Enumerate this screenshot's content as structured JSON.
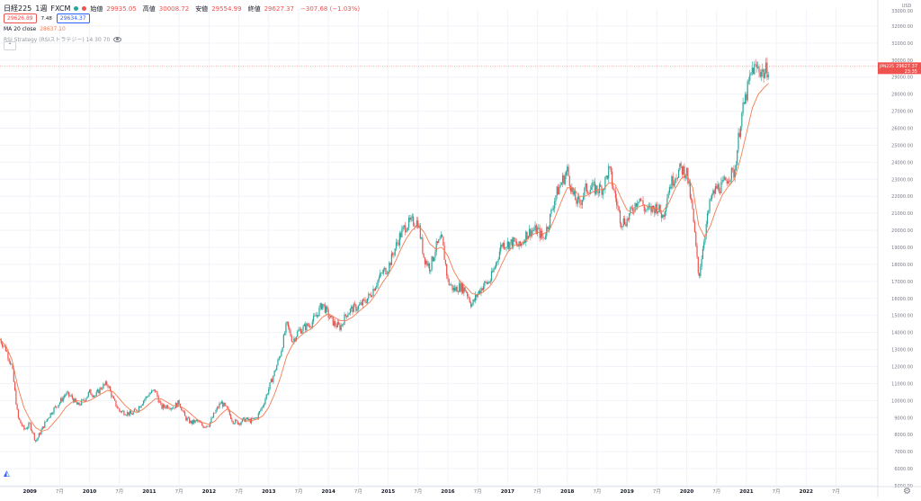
{
  "header": {
    "symbol": "日経225",
    "interval": "1週",
    "source": "FXCM",
    "status_dot_color": "#26a69a",
    "market_dot_color": "#ef5350",
    "ohlc": [
      {
        "label": "始値",
        "value": "29935.05"
      },
      {
        "label": "高値",
        "value": "30008.72"
      },
      {
        "label": "安値",
        "value": "29554.99"
      },
      {
        "label": "終値",
        "value": "29627.37"
      }
    ],
    "change": "−307.68 (−1.03%)",
    "sell_price": "29626.89",
    "spread": "7.48",
    "buy_price": "29634.37",
    "ma_label": "MA 20 close",
    "ma_value": "28637.10",
    "strategy_label": "RSI Strategy (RSIストラテジー) 14 30 70"
  },
  "colors": {
    "up": "#26a69a",
    "down": "#ef5350",
    "ma": "#f57c4f",
    "grid": "#f0f3fa",
    "axis_text": "#787b86",
    "price_line": "#ef5350"
  },
  "price_axis": {
    "currency": "USD",
    "top_label": "33000.00",
    "last_price_tag": "29627.37",
    "last_time_tag": "23:35",
    "last_symbol_tag": "JPN225"
  },
  "icons": {
    "logo": "tradingview-logo-icon",
    "settings": "gear-icon",
    "collapse": "chevron-up-icon"
  },
  "chart_data": {
    "type": "candlestick",
    "title": "日経225 1週 FXCM",
    "ylabel": "USD",
    "ylim": [
      5000,
      33000
    ],
    "yticks": [
      5000,
      6000,
      7000,
      8000,
      9000,
      10000,
      11000,
      12000,
      13000,
      14000,
      15000,
      16000,
      17000,
      18000,
      19000,
      20000,
      21000,
      22000,
      23000,
      24000,
      25000,
      26000,
      27000,
      28000,
      29000,
      30000,
      31000,
      32000
    ],
    "ytick_labels": [
      "5000.00",
      "6000.00",
      "7000.00",
      "8000.00",
      "9000.00",
      "10000.00",
      "11000.00",
      "12000.00",
      "13000.00",
      "14000.00",
      "15000.00",
      "16000.00",
      "17000.00",
      "18000.00",
      "19000.00",
      "20000.00",
      "21000.00",
      "22000.00",
      "23000.00",
      "24000.00",
      "25000.00",
      "26000.00",
      "27000.00",
      "28000.00",
      "29000.00",
      "30000.00",
      "31000.00",
      "32000.00"
    ],
    "xlim": [
      2008.5,
      2023.2
    ],
    "xticks": [
      {
        "x": 2009.0,
        "label": "2009",
        "bold": true
      },
      {
        "x": 2009.5,
        "label": "7月",
        "bold": false
      },
      {
        "x": 2010.0,
        "label": "2010",
        "bold": true
      },
      {
        "x": 2010.5,
        "label": "7月",
        "bold": false
      },
      {
        "x": 2011.0,
        "label": "2011",
        "bold": true
      },
      {
        "x": 2011.5,
        "label": "7月",
        "bold": false
      },
      {
        "x": 2012.0,
        "label": "2012",
        "bold": true
      },
      {
        "x": 2012.5,
        "label": "7月",
        "bold": false
      },
      {
        "x": 2013.0,
        "label": "2013",
        "bold": true
      },
      {
        "x": 2013.5,
        "label": "7月",
        "bold": false
      },
      {
        "x": 2014.0,
        "label": "2014",
        "bold": true
      },
      {
        "x": 2014.5,
        "label": "7月",
        "bold": false
      },
      {
        "x": 2015.0,
        "label": "2015",
        "bold": true
      },
      {
        "x": 2015.5,
        "label": "7月",
        "bold": false
      },
      {
        "x": 2016.0,
        "label": "2016",
        "bold": true
      },
      {
        "x": 2016.5,
        "label": "7月",
        "bold": false
      },
      {
        "x": 2017.0,
        "label": "2017",
        "bold": true
      },
      {
        "x": 2017.5,
        "label": "7月",
        "bold": false
      },
      {
        "x": 2018.0,
        "label": "2018",
        "bold": true
      },
      {
        "x": 2018.5,
        "label": "7月",
        "bold": false
      },
      {
        "x": 2019.0,
        "label": "2019",
        "bold": true
      },
      {
        "x": 2019.5,
        "label": "7月",
        "bold": false
      },
      {
        "x": 2020.0,
        "label": "2020",
        "bold": true
      },
      {
        "x": 2020.5,
        "label": "7月",
        "bold": false
      },
      {
        "x": 2021.0,
        "label": "2021",
        "bold": true
      },
      {
        "x": 2021.5,
        "label": "7月",
        "bold": false
      },
      {
        "x": 2022.0,
        "label": "2022",
        "bold": true
      },
      {
        "x": 2022.5,
        "label": "7月",
        "bold": false
      }
    ],
    "close_path": [
      [
        2008.5,
        13600
      ],
      [
        2008.6,
        13000
      ],
      [
        2008.7,
        12000
      ],
      [
        2008.8,
        9000
      ],
      [
        2008.9,
        8300
      ],
      [
        2009.0,
        8600
      ],
      [
        2009.1,
        7600
      ],
      [
        2009.2,
        8300
      ],
      [
        2009.3,
        9000
      ],
      [
        2009.4,
        9500
      ],
      [
        2009.5,
        9900
      ],
      [
        2009.6,
        10400
      ],
      [
        2009.7,
        10200
      ],
      [
        2009.8,
        9700
      ],
      [
        2009.9,
        10000
      ],
      [
        2010.0,
        10500
      ],
      [
        2010.1,
        10300
      ],
      [
        2010.2,
        10800
      ],
      [
        2010.3,
        11000
      ],
      [
        2010.4,
        10000
      ],
      [
        2010.5,
        9400
      ],
      [
        2010.6,
        9300
      ],
      [
        2010.7,
        9200
      ],
      [
        2010.8,
        9500
      ],
      [
        2010.9,
        10000
      ],
      [
        2011.0,
        10400
      ],
      [
        2011.1,
        10600
      ],
      [
        2011.2,
        9600
      ],
      [
        2011.3,
        9700
      ],
      [
        2011.4,
        9600
      ],
      [
        2011.5,
        9900
      ],
      [
        2011.6,
        9000
      ],
      [
        2011.7,
        8700
      ],
      [
        2011.8,
        8800
      ],
      [
        2011.9,
        8500
      ],
      [
        2012.0,
        8600
      ],
      [
        2012.1,
        9300
      ],
      [
        2012.2,
        9900
      ],
      [
        2012.3,
        9500
      ],
      [
        2012.4,
        8800
      ],
      [
        2012.5,
        8700
      ],
      [
        2012.6,
        8900
      ],
      [
        2012.7,
        8800
      ],
      [
        2012.8,
        9000
      ],
      [
        2012.9,
        9700
      ],
      [
        2013.0,
        10700
      ],
      [
        2013.1,
        11700
      ],
      [
        2013.2,
        12800
      ],
      [
        2013.3,
        14500
      ],
      [
        2013.4,
        13500
      ],
      [
        2013.5,
        14100
      ],
      [
        2013.6,
        14300
      ],
      [
        2013.7,
        14500
      ],
      [
        2013.8,
        15000
      ],
      [
        2013.9,
        15700
      ],
      [
        2014.0,
        15000
      ],
      [
        2014.1,
        14500
      ],
      [
        2014.2,
        14300
      ],
      [
        2014.3,
        15100
      ],
      [
        2014.4,
        15400
      ],
      [
        2014.5,
        15500
      ],
      [
        2014.6,
        15800
      ],
      [
        2014.7,
        16200
      ],
      [
        2014.8,
        16900
      ],
      [
        2014.9,
        17500
      ],
      [
        2015.0,
        17800
      ],
      [
        2015.1,
        18800
      ],
      [
        2015.2,
        19700
      ],
      [
        2015.3,
        20300
      ],
      [
        2015.4,
        20500
      ],
      [
        2015.5,
        20500
      ],
      [
        2015.6,
        18400
      ],
      [
        2015.7,
        17800
      ],
      [
        2015.8,
        19000
      ],
      [
        2015.9,
        19500
      ],
      [
        2016.0,
        17000
      ],
      [
        2016.1,
        16500
      ],
      [
        2016.2,
        16700
      ],
      [
        2016.3,
        16500
      ],
      [
        2016.4,
        15600
      ],
      [
        2016.5,
        16300
      ],
      [
        2016.6,
        16800
      ],
      [
        2016.7,
        17000
      ],
      [
        2016.8,
        18000
      ],
      [
        2016.9,
        19200
      ],
      [
        2017.0,
        19200
      ],
      [
        2017.1,
        19300
      ],
      [
        2017.2,
        19000
      ],
      [
        2017.3,
        19700
      ],
      [
        2017.4,
        20000
      ],
      [
        2017.5,
        20000
      ],
      [
        2017.6,
        19500
      ],
      [
        2017.7,
        20600
      ],
      [
        2017.8,
        22000
      ],
      [
        2017.9,
        22800
      ],
      [
        2018.0,
        23500
      ],
      [
        2018.1,
        22000
      ],
      [
        2018.2,
        21500
      ],
      [
        2018.3,
        22400
      ],
      [
        2018.4,
        22500
      ],
      [
        2018.5,
        22400
      ],
      [
        2018.6,
        22500
      ],
      [
        2018.7,
        23600
      ],
      [
        2018.8,
        22000
      ],
      [
        2018.9,
        20500
      ],
      [
        2019.0,
        20600
      ],
      [
        2019.1,
        21300
      ],
      [
        2019.2,
        22000
      ],
      [
        2019.3,
        21200
      ],
      [
        2019.4,
        21200
      ],
      [
        2019.5,
        21400
      ],
      [
        2019.6,
        20800
      ],
      [
        2019.7,
        22500
      ],
      [
        2019.8,
        23200
      ],
      [
        2019.9,
        23600
      ],
      [
        2020.0,
        23400
      ],
      [
        2020.1,
        21000
      ],
      [
        2020.2,
        17200
      ],
      [
        2020.3,
        19800
      ],
      [
        2020.4,
        21800
      ],
      [
        2020.5,
        22500
      ],
      [
        2020.6,
        22600
      ],
      [
        2020.7,
        23200
      ],
      [
        2020.8,
        23400
      ],
      [
        2020.9,
        26400
      ],
      [
        2021.0,
        28000
      ],
      [
        2021.1,
        29500
      ],
      [
        2021.2,
        29500
      ],
      [
        2021.3,
        29200
      ],
      [
        2021.37,
        29627
      ]
    ],
    "ma20": [
      [
        2008.5,
        13600
      ],
      [
        2008.6,
        13200
      ],
      [
        2008.7,
        12400
      ],
      [
        2008.8,
        10800
      ],
      [
        2008.9,
        9600
      ],
      [
        2009.0,
        8900
      ],
      [
        2009.1,
        8400
      ],
      [
        2009.2,
        8200
      ],
      [
        2009.3,
        8300
      ],
      [
        2009.4,
        8700
      ],
      [
        2009.5,
        9100
      ],
      [
        2009.6,
        9600
      ],
      [
        2009.7,
        9900
      ],
      [
        2009.8,
        10000
      ],
      [
        2009.9,
        9900
      ],
      [
        2010.0,
        10000
      ],
      [
        2010.1,
        10200
      ],
      [
        2010.2,
        10400
      ],
      [
        2010.3,
        10600
      ],
      [
        2010.4,
        10500
      ],
      [
        2010.5,
        10100
      ],
      [
        2010.6,
        9700
      ],
      [
        2010.7,
        9400
      ],
      [
        2010.8,
        9300
      ],
      [
        2010.9,
        9500
      ],
      [
        2011.0,
        9800
      ],
      [
        2011.1,
        10100
      ],
      [
        2011.2,
        10100
      ],
      [
        2011.3,
        9900
      ],
      [
        2011.4,
        9700
      ],
      [
        2011.5,
        9700
      ],
      [
        2011.6,
        9500
      ],
      [
        2011.7,
        9200
      ],
      [
        2011.8,
        8900
      ],
      [
        2011.9,
        8700
      ],
      [
        2012.0,
        8600
      ],
      [
        2012.1,
        8800
      ],
      [
        2012.2,
        9200
      ],
      [
        2012.3,
        9500
      ],
      [
        2012.4,
        9300
      ],
      [
        2012.5,
        9000
      ],
      [
        2012.6,
        8800
      ],
      [
        2012.7,
        8800
      ],
      [
        2012.8,
        8900
      ],
      [
        2012.9,
        9100
      ],
      [
        2013.0,
        9600
      ],
      [
        2013.1,
        10400
      ],
      [
        2013.2,
        11400
      ],
      [
        2013.3,
        12600
      ],
      [
        2013.4,
        13300
      ],
      [
        2013.5,
        13700
      ],
      [
        2013.6,
        14000
      ],
      [
        2013.7,
        14200
      ],
      [
        2013.8,
        14500
      ],
      [
        2013.9,
        14900
      ],
      [
        2014.0,
        15100
      ],
      [
        2014.1,
        14900
      ],
      [
        2014.2,
        14700
      ],
      [
        2014.3,
        14700
      ],
      [
        2014.4,
        14900
      ],
      [
        2014.5,
        15200
      ],
      [
        2014.6,
        15500
      ],
      [
        2014.7,
        15800
      ],
      [
        2014.8,
        16300
      ],
      [
        2014.9,
        16900
      ],
      [
        2015.0,
        17400
      ],
      [
        2015.1,
        18000
      ],
      [
        2015.2,
        18800
      ],
      [
        2015.3,
        19500
      ],
      [
        2015.4,
        20000
      ],
      [
        2015.5,
        20300
      ],
      [
        2015.6,
        19900
      ],
      [
        2015.7,
        19200
      ],
      [
        2015.8,
        18900
      ],
      [
        2015.9,
        19000
      ],
      [
        2016.0,
        18500
      ],
      [
        2016.1,
        17600
      ],
      [
        2016.2,
        17000
      ],
      [
        2016.3,
        16700
      ],
      [
        2016.4,
        16300
      ],
      [
        2016.5,
        16200
      ],
      [
        2016.6,
        16400
      ],
      [
        2016.7,
        16700
      ],
      [
        2016.8,
        17200
      ],
      [
        2016.9,
        18000
      ],
      [
        2017.0,
        18700
      ],
      [
        2017.1,
        19100
      ],
      [
        2017.2,
        19200
      ],
      [
        2017.3,
        19400
      ],
      [
        2017.4,
        19700
      ],
      [
        2017.5,
        19900
      ],
      [
        2017.6,
        19800
      ],
      [
        2017.7,
        20000
      ],
      [
        2017.8,
        20800
      ],
      [
        2017.9,
        21700
      ],
      [
        2018.0,
        22500
      ],
      [
        2018.1,
        22500
      ],
      [
        2018.2,
        22000
      ],
      [
        2018.3,
        22000
      ],
      [
        2018.4,
        22200
      ],
      [
        2018.5,
        22400
      ],
      [
        2018.6,
        22400
      ],
      [
        2018.7,
        22800
      ],
      [
        2018.8,
        22700
      ],
      [
        2018.9,
        21900
      ],
      [
        2019.0,
        21200
      ],
      [
        2019.1,
        21000
      ],
      [
        2019.2,
        21400
      ],
      [
        2019.3,
        21500
      ],
      [
        2019.4,
        21300
      ],
      [
        2019.5,
        21300
      ],
      [
        2019.6,
        21100
      ],
      [
        2019.7,
        21600
      ],
      [
        2019.8,
        22400
      ],
      [
        2019.9,
        23000
      ],
      [
        2020.0,
        23300
      ],
      [
        2020.1,
        22500
      ],
      [
        2020.2,
        20300
      ],
      [
        2020.3,
        19600
      ],
      [
        2020.4,
        20300
      ],
      [
        2020.5,
        21300
      ],
      [
        2020.6,
        22100
      ],
      [
        2020.7,
        22600
      ],
      [
        2020.8,
        23000
      ],
      [
        2020.9,
        24200
      ],
      [
        2021.0,
        25700
      ],
      [
        2021.1,
        27200
      ],
      [
        2021.2,
        28000
      ],
      [
        2021.3,
        28400
      ],
      [
        2021.37,
        28637
      ]
    ]
  }
}
